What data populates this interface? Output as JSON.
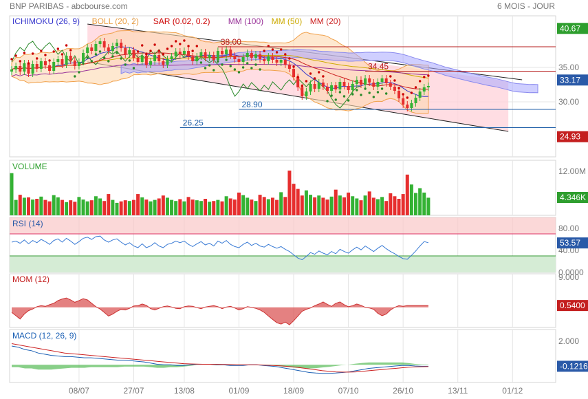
{
  "header": {
    "title": "BNP PARIBAS - abcbourse.com",
    "period": "6 MOIS - JOUR"
  },
  "colors": {
    "grid": "#e4e4e4",
    "axis": "#999999",
    "up": "#34b234",
    "down": "#e62e2e",
    "ichimoku": "#3333cc",
    "cloud": "#a8a8ff",
    "boll": "#f0a04a",
    "bollFill": "#fdd9b0",
    "sar": "#cc0000",
    "mm100": "#993399",
    "mm50": "#ccaa00",
    "mm20": "#cc2222",
    "channel": "#ff9999",
    "rsi": "#3a7bd5",
    "mom": "#cc3333",
    "macd": "#1a5fb4",
    "signal": "#cc2222",
    "hist": "#55bb55"
  },
  "xaxis": {
    "ticks": [
      {
        "label": "08/07",
        "i": 16
      },
      {
        "label": "27/07",
        "i": 29
      },
      {
        "label": "13/08",
        "i": 41
      },
      {
        "label": "01/09",
        "i": 54
      },
      {
        "label": "18/09",
        "i": 67
      },
      {
        "label": "07/10",
        "i": 80
      },
      {
        "label": "26/10",
        "i": 93
      },
      {
        "label": "13/11",
        "i": 106
      },
      {
        "label": "01/12",
        "i": 119
      }
    ]
  },
  "chart_data": [
    {
      "type": "candlestick",
      "legend": [
        {
          "label": "ICHIMOKU (26, 9)",
          "color": "#3333cc"
        },
        {
          "label": "BOLL (20, 2)",
          "color": "#e89a3c"
        },
        {
          "label": "SAR (0.02, 0.2)",
          "color": "#cc0000"
        },
        {
          "label": "MM (100)",
          "color": "#993399"
        },
        {
          "label": "MM (50)",
          "color": "#ccaa00"
        },
        {
          "label": "MM (20)",
          "color": "#cc2222"
        }
      ],
      "ylim": [
        22,
        42.5
      ],
      "y_ticks": [
        "35.00",
        "30.00"
      ],
      "value_badges": [
        {
          "label": "40.67",
          "value": 40.67,
          "color": "#2e9e2e"
        },
        {
          "label": "33.17",
          "value": 33.17,
          "color": "#2a5aa8"
        },
        {
          "label": "24.93",
          "value": 24.93,
          "color": "#c41f1f"
        }
      ],
      "levels": [
        {
          "label": "38.00",
          "value": 38.0,
          "color": "#b71c1c",
          "from": 49,
          "to": 128
        },
        {
          "label": "34.45",
          "value": 34.45,
          "color": "#b71c1c",
          "from": 84,
          "to": 128
        },
        {
          "label": "28.90",
          "value": 28.9,
          "color": "#1f5fa8",
          "from": 54,
          "to": 128
        },
        {
          "label": "26.25",
          "value": 26.25,
          "color": "#1f5fa8",
          "from": 40,
          "to": 128
        }
      ],
      "channel": {
        "upper": [
          [
            18,
            41.3
          ],
          [
            118,
            33.0
          ]
        ],
        "lower": [
          [
            18,
            35.8
          ],
          [
            118,
            25.7
          ]
        ]
      },
      "closes": [
        34.7,
        35.2,
        34.4,
        35.6,
        34.1,
        35.5,
        34.8,
        35.9,
        35.3,
        34.5,
        35.8,
        36.2,
        35.4,
        36.7,
        36.0,
        35.2,
        35.8,
        37.1,
        37.9,
        37.4,
        38.4,
        38.8,
        37.9,
        37.4,
        38.1,
        38.6,
        37.8,
        36.9,
        37.5,
        36.4,
        35.8,
        36.7,
        35.4,
        35.9,
        36.8,
        35.9,
        35.4,
        36.2,
        36.6,
        37.3,
        36.9,
        37.4,
        36.6,
        35.9,
        36.6,
        37.2,
        36.4,
        36.8,
        36.1,
        37.4,
        36.9,
        37.6,
        36.7,
        36.2,
        35.8,
        36.5,
        37.1,
        36.4,
        36.9,
        36.2,
        35.9,
        36.6,
        36.1,
        35.7,
        36.1,
        35.4,
        34.8,
        33.6,
        32.1,
        30.8,
        31.5,
        32.6,
        31.9,
        32.8,
        32.2,
        31.6,
        32.4,
        31.8,
        32.9,
        32.3,
        31.7,
        32.6,
        33.2,
        32.5,
        33.4,
        32.8,
        32.2,
        32.9,
        33.4,
        32.7,
        32.2,
        31.6,
        30.5,
        29.6,
        29.1,
        29.8,
        30.6,
        31.5,
        32.1,
        32.3
      ],
      "volume": {
        "label": "VOLUME",
        "ylim": [
          0,
          15
        ],
        "y_ticks": [
          "12.00M"
        ],
        "badge": {
          "label": "4.346K",
          "color": "#2e9e2e"
        },
        "values": [
          11.5,
          4.2,
          5.6,
          4.8,
          4.9,
          4.3,
          4.5,
          5.1,
          4.2,
          3.8,
          5.5,
          4.9,
          4.2,
          3.6,
          4.1,
          3.7,
          5.0,
          4.3,
          3.8,
          4.1,
          5.2,
          4.6,
          3.9,
          5.8,
          4.2,
          3.4,
          3.8,
          4.1,
          3.9,
          4.2,
          5.8,
          4.9,
          4.3,
          3.8,
          4.2,
          4.6,
          5.4,
          4.8,
          4.2,
          3.9,
          4.4,
          3.8,
          5.0,
          4.3,
          4.1,
          3.9,
          4.5,
          3.7,
          3.9,
          4.2,
          3.8,
          5.2,
          4.6,
          4.3,
          6.2,
          5.5,
          4.8,
          4.3,
          3.9,
          5.6,
          5.0,
          4.4,
          4.8,
          4.2,
          6.3,
          5.0,
          12.2,
          8.6,
          7.2,
          5.4,
          6.8,
          5.6,
          4.9,
          5.4,
          4.8,
          4.3,
          5.1,
          7.0,
          5.4,
          4.9,
          6.2,
          5.2,
          4.6,
          4.1,
          5.4,
          6.5,
          4.8,
          4.4,
          5.0,
          3.9,
          6.0,
          5.2,
          4.5,
          5.8,
          11.1,
          8.4,
          6.1,
          7.4,
          6.2,
          4.8
        ]
      },
      "rsi": {
        "label": "RSI (14)",
        "ylim": [
          0,
          100
        ],
        "y_ticks": [
          "80.00",
          "40.00",
          "0.0000"
        ],
        "bands": {
          "over": 70,
          "under": 30
        },
        "badge": {
          "label": "53.57",
          "color": "#2a5aa8"
        },
        "values": [
          55,
          57,
          53,
          59,
          52,
          58,
          54,
          60,
          56,
          51,
          58,
          61,
          55,
          62,
          57,
          51,
          56,
          62,
          64,
          60,
          65,
          66,
          59,
          55,
          59,
          61,
          55,
          50,
          54,
          48,
          45,
          52,
          45,
          48,
          54,
          48,
          45,
          51,
          53,
          57,
          54,
          57,
          51,
          47,
          52,
          56,
          50,
          53,
          48,
          57,
          53,
          58,
          51,
          47,
          45,
          51,
          55,
          49,
          53,
          48,
          46,
          51,
          47,
          44,
          47,
          42,
          38,
          32,
          26,
          23,
          29,
          36,
          33,
          39,
          35,
          32,
          38,
          34,
          42,
          38,
          35,
          41,
          46,
          41,
          48,
          43,
          38,
          44,
          49,
          43,
          38,
          34,
          29,
          25,
          24,
          31,
          39,
          48,
          56,
          54
        ]
      },
      "mom": {
        "label": "MOM (12)",
        "ylim": [
          -6,
          10
        ],
        "y_ticks": [
          "9.000"
        ],
        "badge": {
          "label": "0.5400",
          "color": "#c41f1f"
        },
        "values": [
          -1.5,
          -2.5,
          -3.5,
          -2.0,
          -1.0,
          -0.5,
          0.2,
          0.5,
          0.3,
          0.8,
          1.2,
          2.0,
          2.5,
          2.8,
          2.2,
          1.5,
          2.0,
          2.6,
          2.2,
          1.2,
          0.2,
          -0.5,
          -1.5,
          -2.6,
          -2.0,
          -1.2,
          -0.6,
          -0.8,
          -0.3,
          0.4,
          0.5,
          1.0,
          0.6,
          -0.4,
          -0.8,
          -0.3,
          0.2,
          0.4,
          0.1,
          -0.3,
          -0.4,
          0.2,
          0.4,
          0.3,
          -0.1,
          -0.4,
          0.1,
          0.3,
          0.5,
          0.2,
          -0.4,
          0.1,
          0.3,
          -0.2,
          -0.8,
          -0.4,
          0.2,
          0.0,
          -0.3,
          -0.8,
          -1.5,
          -2.6,
          -3.6,
          -4.6,
          -5.0,
          -4.4,
          -5.2,
          -4.0,
          -2.6,
          -1.2,
          -0.6,
          -0.2,
          0.5,
          1.0,
          1.6,
          0.9,
          0.3,
          1.2,
          1.6,
          0.8,
          0.2,
          0.5,
          1.0,
          0.6,
          0.0,
          -0.2,
          -0.6,
          -1.8,
          -2.5,
          -2.0,
          -0.8,
          0.0,
          0.5,
          0.3,
          0.54,
          0.54,
          0.54,
          0.54,
          0.54,
          0.54
        ]
      },
      "macd": {
        "label": "MACD (12, 26, 9)",
        "ylim": [
          -1.5,
          3
        ],
        "y_ticks": [
          "2.000"
        ],
        "badge": {
          "label": "-0.1216",
          "color": "#2a5aa8"
        },
        "macd": [
          1.6,
          1.5,
          1.3,
          1.2,
          1.0,
          0.9,
          0.8,
          0.75,
          0.7,
          0.7,
          0.65,
          0.6,
          0.6,
          0.55,
          0.5,
          0.45,
          0.4,
          0.4,
          0.35,
          0.3,
          0.25,
          0.15,
          0.05,
          0.0,
          0.0,
          -0.05,
          -0.05,
          0.0,
          0.05,
          0.05,
          0.05,
          0.0,
          0.0,
          -0.05,
          -0.05,
          -0.05,
          0.0,
          0.0,
          -0.05,
          -0.1,
          -0.15,
          -0.25,
          -0.35,
          -0.45,
          -0.55,
          -0.65,
          -0.7,
          -0.72,
          -0.72,
          -0.7,
          -0.65,
          -0.6,
          -0.5,
          -0.4,
          -0.3,
          -0.25,
          -0.2,
          -0.15,
          -0.1,
          -0.05,
          -0.05,
          -0.1,
          -0.12,
          -0.12
        ],
        "signal": [
          1.8,
          1.7,
          1.6,
          1.5,
          1.4,
          1.3,
          1.2,
          1.1,
          1.0,
          0.95,
          0.9,
          0.85,
          0.8,
          0.75,
          0.7,
          0.65,
          0.6,
          0.55,
          0.5,
          0.45,
          0.4,
          0.35,
          0.3,
          0.25,
          0.2,
          0.15,
          0.1,
          0.08,
          0.06,
          0.05,
          0.05,
          0.04,
          0.03,
          0.02,
          0.01,
          0.0,
          0.0,
          0.0,
          -0.02,
          -0.04,
          -0.07,
          -0.1,
          -0.15,
          -0.2,
          -0.27,
          -0.34,
          -0.42,
          -0.5,
          -0.55,
          -0.6,
          -0.62,
          -0.62,
          -0.6,
          -0.56,
          -0.5,
          -0.45,
          -0.4,
          -0.35,
          -0.3,
          -0.25,
          -0.2,
          -0.18,
          -0.16,
          -0.15
        ]
      }
    }
  ]
}
